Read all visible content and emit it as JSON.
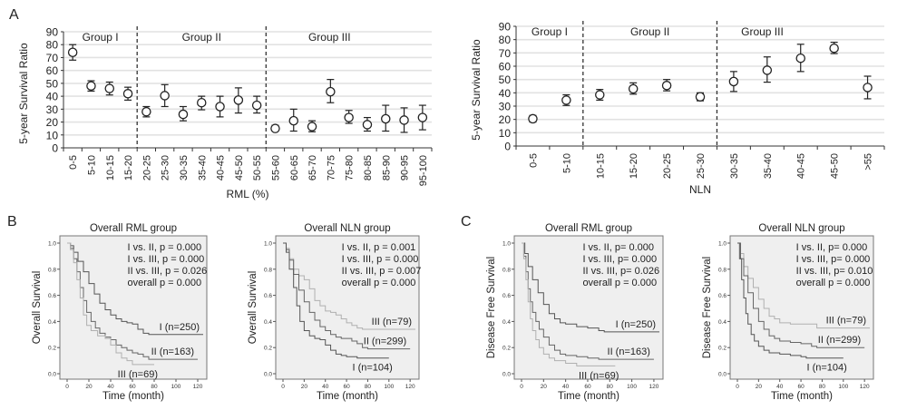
{
  "panel_labels": {
    "A": "A",
    "B": "B",
    "C": "C"
  },
  "chart_data": [
    {
      "id": "A-RML",
      "type": "scatter",
      "title": "",
      "xlabel": "RML (%)",
      "ylabel": "5-year Survival Ratio",
      "ylim": [
        0,
        90
      ],
      "yticks": [
        0,
        10,
        20,
        30,
        40,
        50,
        60,
        70,
        80,
        90
      ],
      "grid": true,
      "categories": [
        "0-5",
        "5-10",
        "10-15",
        "15-20",
        "20-25",
        "25-30",
        "30-35",
        "35-40",
        "40-45",
        "45-50",
        "50-55",
        "55-60",
        "60-65",
        "65-70",
        "70-75",
        "75-80",
        "80-85",
        "85-90",
        "90-95",
        "95-100"
      ],
      "values": [
        74,
        48,
        46,
        42,
        28,
        40.5,
        26,
        35,
        32,
        37,
        33,
        15,
        21,
        16.5,
        43.5,
        23.5,
        18,
        22.5,
        21.5,
        23.5
      ],
      "error_low": [
        68,
        44,
        41,
        37,
        24,
        32,
        21,
        29.5,
        24,
        27,
        27,
        13.5,
        13,
        12.5,
        35,
        19,
        13,
        13,
        12,
        14
      ],
      "error_high": [
        80,
        52,
        51,
        47,
        32,
        49,
        32,
        40,
        40,
        46.5,
        40,
        17.5,
        30,
        21,
        53,
        29,
        23.5,
        33,
        31,
        33
      ],
      "groups": [
        {
          "label": "Group I",
          "start": 0,
          "end": 3
        },
        {
          "label": "Group II",
          "start": 4,
          "end": 10
        },
        {
          "label": "Group III",
          "start": 11,
          "end": 19
        }
      ]
    },
    {
      "id": "A-NLN",
      "type": "scatter",
      "title": "",
      "xlabel": "NLN",
      "ylabel": "5-year Survival Ratio",
      "ylim": [
        0,
        90
      ],
      "yticks": [
        0,
        10,
        20,
        30,
        40,
        50,
        60,
        70,
        80,
        90
      ],
      "grid": true,
      "categories": [
        "0-5",
        "5-10",
        "10-15",
        "15-20",
        "20-25",
        "25-30",
        "30-35",
        "35-40",
        "40-45",
        "45-50",
        ">55"
      ],
      "values": [
        20.5,
        34.5,
        38.5,
        43,
        45.5,
        37,
        48.5,
        57,
        66,
        73.5,
        44
      ],
      "error_low": [
        18,
        30.5,
        34.5,
        39,
        41.5,
        34,
        41,
        48,
        56,
        69.5,
        35.5
      ],
      "error_high": [
        23,
        38.5,
        42.5,
        47.5,
        50,
        40,
        56,
        67,
        76.5,
        78,
        52.5
      ],
      "groups": [
        {
          "label": "Group I",
          "start": 0,
          "end": 1
        },
        {
          "label": "Group II",
          "start": 2,
          "end": 5
        },
        {
          "label": "Group III",
          "start": 6,
          "end": 10
        }
      ]
    },
    {
      "id": "B-RML",
      "type": "line",
      "title": "Overall RML group",
      "xlabel": "Time (month)",
      "ylabel": "Overall Survival",
      "xlim": [
        0,
        125
      ],
      "ylim": [
        0,
        1
      ],
      "xticks": [
        0,
        20,
        40,
        60,
        80,
        100,
        120
      ],
      "yticks": [
        0.0,
        0.2,
        0.4,
        0.6,
        0.8,
        1.0
      ],
      "annotations": [
        "I vs. II, p = 0.000",
        "I vs. III, p = 0.000",
        "II vs. III, p = 0.026",
        "overall p = 0.000"
      ],
      "series": [
        {
          "name": "I (n=250)",
          "color": "#555555",
          "x": [
            0,
            3,
            6,
            10,
            15,
            20,
            25,
            30,
            35,
            40,
            45,
            50,
            55,
            60,
            65,
            70,
            75,
            125
          ],
          "y": [
            1.0,
            0.98,
            0.93,
            0.86,
            0.78,
            0.69,
            0.61,
            0.54,
            0.49,
            0.45,
            0.42,
            0.4,
            0.39,
            0.38,
            0.34,
            0.31,
            0.3,
            0.3
          ]
        },
        {
          "name": "II (n=163)",
          "color": "#666666",
          "x": [
            0,
            3,
            6,
            9,
            12,
            15,
            18,
            22,
            26,
            30,
            35,
            40,
            45,
            50,
            55,
            60,
            65,
            70,
            75,
            120
          ],
          "y": [
            1.0,
            0.96,
            0.88,
            0.78,
            0.66,
            0.56,
            0.47,
            0.4,
            0.35,
            0.31,
            0.28,
            0.26,
            0.22,
            0.2,
            0.18,
            0.16,
            0.15,
            0.13,
            0.11,
            0.11
          ]
        },
        {
          "name": "III (n=69)",
          "color": "#b0b0b0",
          "x": [
            0,
            3,
            6,
            9,
            12,
            15,
            18,
            22,
            28,
            35,
            40,
            45,
            50,
            55,
            60,
            80
          ],
          "y": [
            1.0,
            0.95,
            0.85,
            0.72,
            0.58,
            0.45,
            0.37,
            0.33,
            0.29,
            0.27,
            0.22,
            0.16,
            0.12,
            0.1,
            0.07,
            0.07
          ]
        }
      ]
    },
    {
      "id": "B-NLN",
      "type": "line",
      "title": "Overall NLN group",
      "xlabel": "Time (month)",
      "ylabel": "Overall Survival",
      "xlim": [
        0,
        125
      ],
      "ylim": [
        0,
        1
      ],
      "xticks": [
        0,
        20,
        40,
        60,
        80,
        100,
        120
      ],
      "yticks": [
        0.0,
        0.2,
        0.4,
        0.6,
        0.8,
        1.0
      ],
      "annotations": [
        "I vs. II, p = 0.001",
        "I vs. III, p = 0.000",
        "II vs. III, p = 0.007",
        "overall p = 0.000"
      ],
      "series": [
        {
          "name": "III (n=79)",
          "color": "#b0b0b0",
          "x": [
            0,
            3,
            6,
            10,
            15,
            20,
            25,
            30,
            35,
            40,
            45,
            50,
            55,
            60,
            65,
            70,
            75,
            125
          ],
          "y": [
            1.0,
            0.96,
            0.88,
            0.8,
            0.75,
            0.72,
            0.65,
            0.56,
            0.52,
            0.48,
            0.47,
            0.45,
            0.42,
            0.39,
            0.37,
            0.35,
            0.34,
            0.34
          ]
        },
        {
          "name": "II (n=299)",
          "color": "#666666",
          "x": [
            0,
            3,
            6,
            10,
            15,
            20,
            25,
            30,
            35,
            40,
            45,
            50,
            55,
            60,
            65,
            70,
            75,
            80,
            120
          ],
          "y": [
            1.0,
            0.95,
            0.87,
            0.76,
            0.64,
            0.55,
            0.47,
            0.41,
            0.36,
            0.33,
            0.3,
            0.28,
            0.27,
            0.27,
            0.25,
            0.23,
            0.2,
            0.19,
            0.19
          ]
        },
        {
          "name": "I (n=104)",
          "color": "#555555",
          "x": [
            0,
            3,
            6,
            10,
            13,
            16,
            20,
            25,
            30,
            35,
            40,
            45,
            50,
            55,
            60,
            70,
            100
          ],
          "y": [
            1.0,
            0.93,
            0.8,
            0.66,
            0.52,
            0.4,
            0.33,
            0.29,
            0.27,
            0.26,
            0.22,
            0.18,
            0.15,
            0.14,
            0.13,
            0.12,
            0.12
          ]
        }
      ]
    },
    {
      "id": "C-RML",
      "type": "line",
      "title": "Overall RML group",
      "xlabel": "Time (month)",
      "ylabel": "Disease Free Survival",
      "xlim": [
        0,
        125
      ],
      "ylim": [
        0,
        1
      ],
      "xticks": [
        0,
        20,
        40,
        60,
        80,
        100,
        120
      ],
      "yticks": [
        0.0,
        0.2,
        0.4,
        0.6,
        0.8,
        1.0
      ],
      "annotations": [
        "I vs. II, p= 0.000",
        "I vs. III, p= 0.000",
        "II vs. III, p= 0.026",
        "overall p = 0.000"
      ],
      "series": [
        {
          "name": "I (n=250)",
          "color": "#555555",
          "x": [
            0,
            3,
            6,
            10,
            15,
            20,
            25,
            30,
            35,
            40,
            50,
            60,
            70,
            75,
            125
          ],
          "y": [
            1.0,
            0.92,
            0.82,
            0.72,
            0.62,
            0.53,
            0.46,
            0.42,
            0.39,
            0.38,
            0.36,
            0.35,
            0.33,
            0.32,
            0.32
          ]
        },
        {
          "name": "II (n=163)",
          "color": "#666666",
          "x": [
            0,
            2,
            4,
            6,
            8,
            10,
            13,
            16,
            20,
            25,
            30,
            35,
            40,
            50,
            60,
            70,
            120
          ],
          "y": [
            1.0,
            0.9,
            0.78,
            0.65,
            0.55,
            0.47,
            0.4,
            0.34,
            0.28,
            0.22,
            0.18,
            0.15,
            0.14,
            0.13,
            0.12,
            0.11,
            0.11
          ]
        },
        {
          "name": "III (n=69)",
          "color": "#b0b0b0",
          "x": [
            0,
            2,
            4,
            6,
            8,
            10,
            13,
            16,
            20,
            25,
            30,
            40,
            50,
            60,
            85
          ],
          "y": [
            1.0,
            0.88,
            0.72,
            0.55,
            0.42,
            0.33,
            0.26,
            0.2,
            0.15,
            0.12,
            0.1,
            0.08,
            0.06,
            0.06,
            0.06
          ]
        }
      ]
    },
    {
      "id": "C-NLN",
      "type": "line",
      "title": "Overall NLN group",
      "xlabel": "Time (month)",
      "ylabel": "Disease Free Survival",
      "xlim": [
        0,
        125
      ],
      "ylim": [
        0,
        1
      ],
      "xticks": [
        0,
        20,
        40,
        60,
        80,
        100,
        120
      ],
      "yticks": [
        0.0,
        0.2,
        0.4,
        0.6,
        0.8,
        1.0
      ],
      "annotations": [
        "I vs. II, p= 0.000",
        "I vs. III, p= 0.000",
        "II vs. III, p= 0.010",
        "overall p = 0.000"
      ],
      "series": [
        {
          "name": "III (n=79)",
          "color": "#b0b0b0",
          "x": [
            0,
            3,
            6,
            10,
            15,
            20,
            25,
            30,
            35,
            40,
            50,
            60,
            70,
            75,
            125
          ],
          "y": [
            1.0,
            0.92,
            0.82,
            0.73,
            0.66,
            0.57,
            0.5,
            0.44,
            0.42,
            0.39,
            0.38,
            0.38,
            0.38,
            0.35,
            0.35
          ]
        },
        {
          "name": "II (n=299)",
          "color": "#666666",
          "x": [
            0,
            3,
            6,
            10,
            15,
            20,
            25,
            30,
            35,
            40,
            50,
            60,
            70,
            75,
            120
          ],
          "y": [
            1.0,
            0.88,
            0.75,
            0.62,
            0.5,
            0.4,
            0.34,
            0.29,
            0.27,
            0.25,
            0.24,
            0.23,
            0.21,
            0.2,
            0.2
          ]
        },
        {
          "name": "I (n=104)",
          "color": "#555555",
          "x": [
            0,
            2,
            4,
            6,
            8,
            10,
            13,
            16,
            20,
            25,
            30,
            40,
            50,
            60,
            65,
            100
          ],
          "y": [
            1.0,
            0.88,
            0.72,
            0.58,
            0.46,
            0.38,
            0.3,
            0.25,
            0.21,
            0.18,
            0.16,
            0.15,
            0.14,
            0.13,
            0.12,
            0.12
          ]
        }
      ]
    }
  ]
}
